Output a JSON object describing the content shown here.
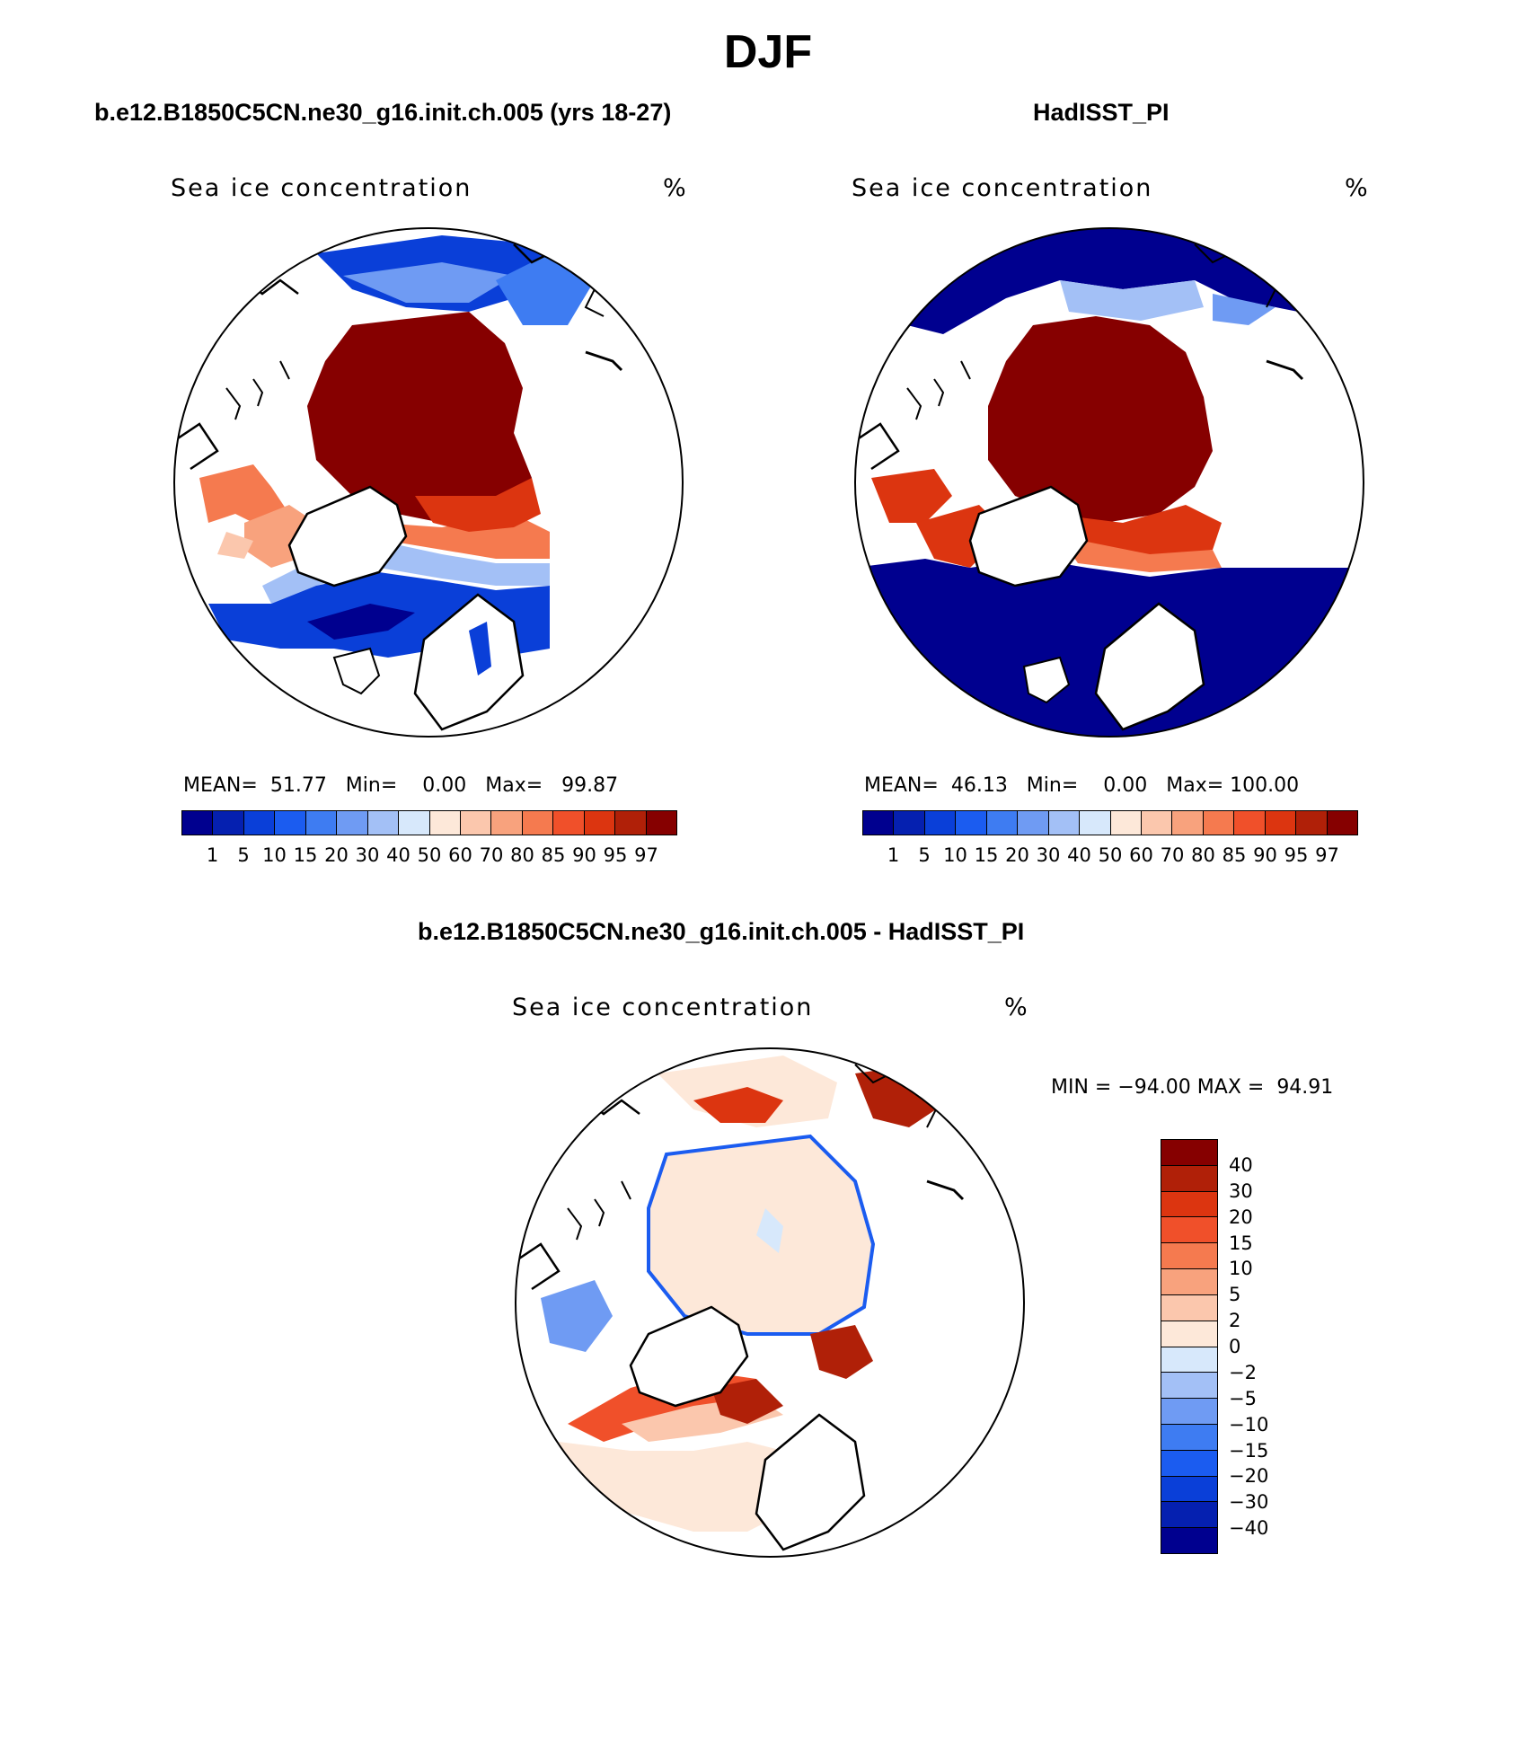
{
  "title": "DJF",
  "panels": {
    "model": {
      "title": "b.e12.B1850C5CN.ne30_g16.init.ch.005 (yrs 18-27)",
      "field_label": "Sea ice concentration",
      "units": "%",
      "stats": {
        "mean_label": "MEAN=",
        "mean": "51.77",
        "min_label": "Min=",
        "min": "0.00",
        "max_label": "Max=",
        "max": "99.87"
      }
    },
    "obs": {
      "title": "HadISST_PI",
      "field_label": "Sea ice concentration",
      "units": "%",
      "stats": {
        "mean_label": "MEAN=",
        "mean": "46.13",
        "min_label": "Min=",
        "min": "0.00",
        "max_label": "Max=",
        "max": "100.00"
      }
    },
    "diff": {
      "title": "b.e12.B1850C5CN.ne30_g16.init.ch.005 - HadISST_PI",
      "field_label": "Sea ice concentration",
      "units": "%",
      "stats": {
        "min_label": "MIN =",
        "min": "−94.00",
        "max_label": "MAX =",
        "max": "94.91"
      }
    }
  },
  "colorbars": {
    "concentration": {
      "ticks": [
        "1",
        "5",
        "10",
        "15",
        "20",
        "30",
        "40",
        "50",
        "60",
        "70",
        "80",
        "85",
        "90",
        "95",
        "97"
      ],
      "colors": [
        "#00008f",
        "#0520b0",
        "#0a3fd8",
        "#1b5cf0",
        "#3e7cf2",
        "#6f9bf3",
        "#a3c0f6",
        "#d7e8fb",
        "#fde8d9",
        "#fbc7ad",
        "#f8a27d",
        "#f57a4f",
        "#f0502a",
        "#dc3510",
        "#b02008",
        "#860000"
      ]
    },
    "difference": {
      "ticks": [
        "40",
        "30",
        "20",
        "15",
        "10",
        "5",
        "2",
        "0",
        "−2",
        "−5",
        "−10",
        "−15",
        "−20",
        "−30",
        "−40"
      ],
      "colors": [
        "#860000",
        "#b02008",
        "#dc3510",
        "#f0502a",
        "#f57a4f",
        "#f8a27d",
        "#fbc7ad",
        "#fde8d9",
        "#d7e8fb",
        "#a3c0f6",
        "#6f9bf3",
        "#3e7cf2",
        "#1b5cf0",
        "#0a3fd8",
        "#0520b0",
        "#00008f"
      ]
    }
  },
  "legend_colors": {
    "ice_dark_red": "#860000",
    "open_water_blue": "#00008f",
    "near_zero_peach": "#fde8d9",
    "land_white": "#ffffff"
  }
}
